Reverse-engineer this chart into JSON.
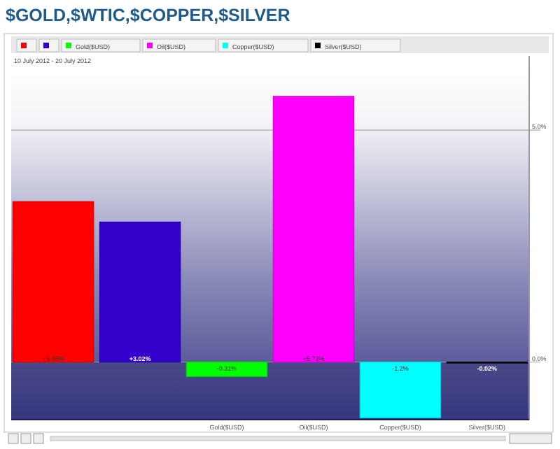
{
  "chart_data": {
    "type": "bar",
    "title": "$GOLD,$WTIC,$COPPER,$SILVER",
    "subtitle": "10 July 2012 - 20 July 2012",
    "categories": [
      null,
      null,
      "Gold($USD)",
      "Oil($USD)",
      "Copper($USD)",
      "Silver($USD)"
    ],
    "values": [
      3.46,
      3.02,
      -0.31,
      5.73,
      -1.2,
      -0.02
    ],
    "value_labels": [
      "+3.46%",
      "+3.02%",
      "-0.31%",
      "+5.73%",
      "-1.2%",
      "-0.02%"
    ],
    "colors": [
      "#ff0000",
      "#3300cc",
      "#00ff00",
      "#ff00ff",
      "#00ffff",
      "#000000"
    ],
    "ylim": [
      -1.24,
      6.3
    ],
    "yticks": [
      {
        "value": 0,
        "label": "0.0%"
      },
      {
        "value": 5,
        "label": "5.0%"
      }
    ],
    "grid": "y"
  }
}
